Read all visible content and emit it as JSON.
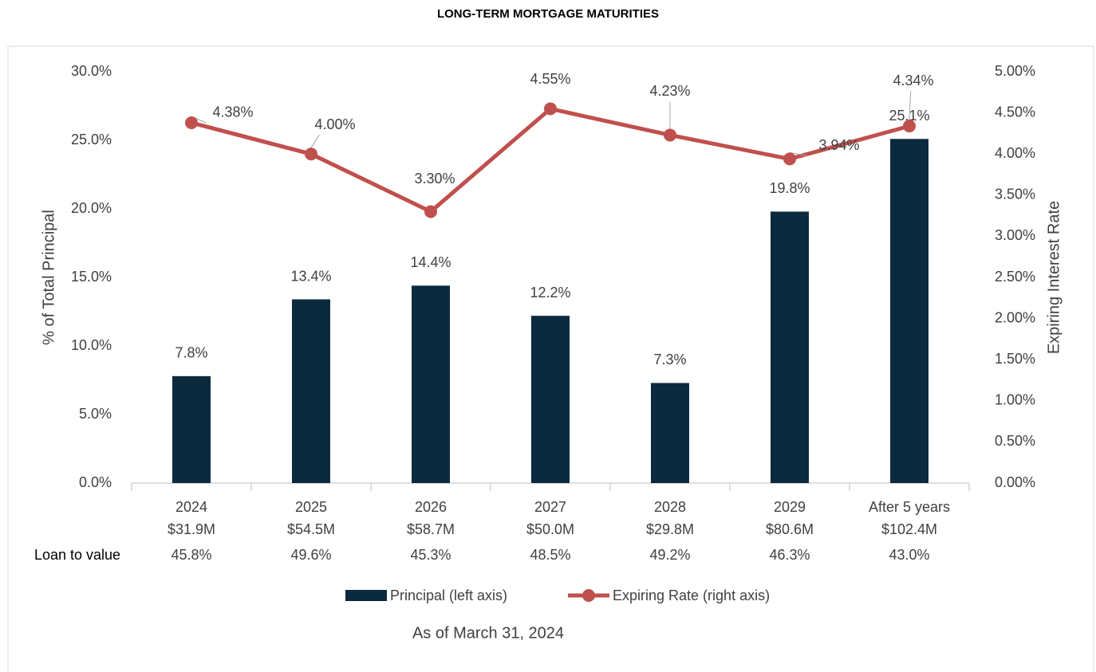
{
  "chart_data": {
    "type": "bar",
    "title": "LONG-TERM MORTGAGE MATURITIES",
    "categories": [
      "2024",
      "2025",
      "2026",
      "2027",
      "2028",
      "2029",
      "After 5 years"
    ],
    "category_amounts": [
      "$31.9M",
      "$54.5M",
      "$58.7M",
      "$50.0M",
      "$29.8M",
      "$80.6M",
      "$102.4M"
    ],
    "loan_to_value_label": "Loan to value",
    "loan_to_value": [
      "45.8%",
      "49.6%",
      "45.3%",
      "48.5%",
      "49.2%",
      "46.3%",
      "43.0%"
    ],
    "y_label": "% of Total Principal",
    "y2_label": "Expiring Interest Rate",
    "note": "As of March 31, 2024",
    "ylim": [
      0,
      30
    ],
    "yticks": [
      {
        "value": 0,
        "label": "0.0%"
      },
      {
        "value": 5,
        "label": "5.0%"
      },
      {
        "value": 10,
        "label": "10.0%"
      },
      {
        "value": 15,
        "label": "15.0%"
      },
      {
        "value": 20,
        "label": "20.0%"
      },
      {
        "value": 25,
        "label": "25.0%"
      },
      {
        "value": 30,
        "label": "30.0%"
      }
    ],
    "y2lim": [
      0,
      5
    ],
    "y2ticks": [
      {
        "value": 0,
        "label": "0.00%"
      },
      {
        "value": 0.5,
        "label": "0.50%"
      },
      {
        "value": 1,
        "label": "1.00%"
      },
      {
        "value": 1.5,
        "label": "1.50%"
      },
      {
        "value": 2,
        "label": "2.00%"
      },
      {
        "value": 2.5,
        "label": "2.50%"
      },
      {
        "value": 3,
        "label": "3.00%"
      },
      {
        "value": 3.5,
        "label": "3.50%"
      },
      {
        "value": 4,
        "label": "4.00%"
      },
      {
        "value": 4.5,
        "label": "4.50%"
      },
      {
        "value": 5,
        "label": "5.00%"
      }
    ],
    "grid": false,
    "series": [
      {
        "name": "Principal (left axis)",
        "type": "bar",
        "color": "#0c2a3e",
        "axis": "y",
        "values": [
          7.8,
          13.4,
          14.4,
          12.2,
          7.3,
          19.8,
          25.1
        ],
        "value_labels": [
          "7.8%",
          "13.4%",
          "14.4%",
          "12.2%",
          "7.3%",
          "19.8%",
          "25.1%"
        ]
      },
      {
        "name": "Expiring Rate (right axis)",
        "type": "line",
        "color": "#c0504d",
        "axis": "y2",
        "values": [
          4.38,
          4.0,
          3.3,
          4.55,
          4.23,
          3.94,
          4.34
        ],
        "value_labels": [
          "4.38%",
          "4.00%",
          "3.30%",
          "4.55%",
          "4.23%",
          "3.94%",
          "4.34%"
        ]
      }
    ]
  }
}
